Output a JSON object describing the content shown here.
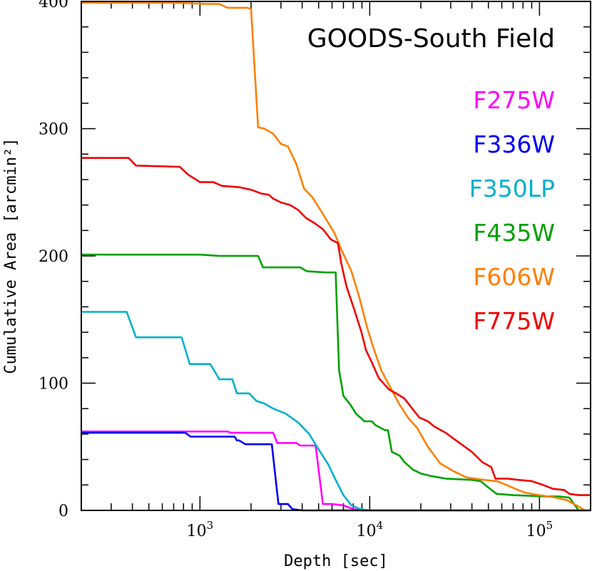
{
  "chart_data": {
    "type": "line",
    "title": "GOODS-South Field",
    "xlabel": "Depth [sec]",
    "ylabel": "Cumulative Area [arcmin²]",
    "x_scale": "log",
    "xlim": [
      200,
      200000
    ],
    "ylim": [
      0,
      400
    ],
    "x_major_ticks": [
      1000,
      10000,
      100000
    ],
    "x_tick_labels": [
      {
        "base": "10",
        "exp": "3"
      },
      {
        "base": "10",
        "exp": "4"
      },
      {
        "base": "10",
        "exp": "5"
      }
    ],
    "y_ticks": [
      0,
      100,
      200,
      300,
      400
    ],
    "y_tick_labels": [
      "0",
      "100",
      "200",
      "300",
      "400"
    ],
    "grid": false,
    "legend_position": "right",
    "series": [
      {
        "name": "F275W",
        "color": "#ff00ff",
        "points": [
          [
            200,
            62
          ],
          [
            1450,
            62
          ],
          [
            1520,
            61
          ],
          [
            2000,
            61
          ],
          [
            2700,
            61
          ],
          [
            2850,
            53
          ],
          [
            3700,
            53
          ],
          [
            3900,
            51
          ],
          [
            4500,
            51
          ],
          [
            4800,
            51
          ],
          [
            5300,
            5
          ],
          [
            6000,
            5
          ],
          [
            7000,
            4
          ],
          [
            8000,
            1
          ],
          [
            9000,
            0
          ],
          [
            200000,
            0
          ]
        ]
      },
      {
        "name": "F336W",
        "color": "#0000ee",
        "points": [
          [
            200,
            61
          ],
          [
            820,
            61
          ],
          [
            880,
            58
          ],
          [
            1600,
            58
          ],
          [
            1650,
            55
          ],
          [
            1700,
            55
          ],
          [
            1850,
            52
          ],
          [
            2400,
            52
          ],
          [
            2650,
            52
          ],
          [
            2900,
            5
          ],
          [
            3300,
            5
          ],
          [
            3500,
            1
          ],
          [
            4000,
            0
          ],
          [
            200000,
            0
          ]
        ]
      },
      {
        "name": "F350LP",
        "color": "#00b0cc",
        "points": [
          [
            200,
            156
          ],
          [
            370,
            156
          ],
          [
            420,
            136
          ],
          [
            780,
            136
          ],
          [
            870,
            115
          ],
          [
            1150,
            115
          ],
          [
            1300,
            103
          ],
          [
            1550,
            103
          ],
          [
            1650,
            92
          ],
          [
            1950,
            92
          ],
          [
            2150,
            86
          ],
          [
            2400,
            84
          ],
          [
            2700,
            80
          ],
          [
            3200,
            76
          ],
          [
            3800,
            69
          ],
          [
            4400,
            60
          ],
          [
            5000,
            48
          ],
          [
            5700,
            36
          ],
          [
            6300,
            24
          ],
          [
            7000,
            12
          ],
          [
            7800,
            4
          ],
          [
            8800,
            1
          ],
          [
            10000,
            0
          ],
          [
            200000,
            0
          ]
        ]
      },
      {
        "name": "F435W",
        "color": "#00a000",
        "points": [
          [
            200,
            201
          ],
          [
            1000,
            201
          ],
          [
            1300,
            200
          ],
          [
            2200,
            200
          ],
          [
            2350,
            191
          ],
          [
            3900,
            191
          ],
          [
            4250,
            188
          ],
          [
            5500,
            187
          ],
          [
            6300,
            187
          ],
          [
            6600,
            110
          ],
          [
            7000,
            90
          ],
          [
            7700,
            83
          ],
          [
            8300,
            76
          ],
          [
            9300,
            70
          ],
          [
            10300,
            70
          ],
          [
            10800,
            67
          ],
          [
            12300,
            63
          ],
          [
            12800,
            63
          ],
          [
            13500,
            46
          ],
          [
            15000,
            43
          ],
          [
            16000,
            38
          ],
          [
            18000,
            32
          ],
          [
            20000,
            29
          ],
          [
            23000,
            27
          ],
          [
            28000,
            25
          ],
          [
            40000,
            24
          ],
          [
            45000,
            23
          ],
          [
            50000,
            18
          ],
          [
            56000,
            13
          ],
          [
            70000,
            12
          ],
          [
            110000,
            11
          ],
          [
            130000,
            11
          ],
          [
            150000,
            10
          ],
          [
            160000,
            5
          ],
          [
            170000,
            0
          ],
          [
            200000,
            0
          ]
        ]
      },
      {
        "name": "F606W",
        "color": "#ff7f00",
        "points": [
          [
            200,
            399
          ],
          [
            700,
            399
          ],
          [
            1100,
            398
          ],
          [
            1300,
            398
          ],
          [
            1450,
            395
          ],
          [
            1900,
            395
          ],
          [
            2000,
            394
          ],
          [
            2200,
            301
          ],
          [
            2400,
            300
          ],
          [
            2700,
            296
          ],
          [
            3000,
            288
          ],
          [
            3300,
            286
          ],
          [
            3700,
            272
          ],
          [
            4100,
            253
          ],
          [
            4600,
            246
          ],
          [
            5300,
            233
          ],
          [
            6200,
            218
          ],
          [
            6800,
            205
          ],
          [
            7800,
            188
          ],
          [
            8700,
            167
          ],
          [
            9600,
            145
          ],
          [
            10500,
            128
          ],
          [
            11700,
            110
          ],
          [
            13300,
            96
          ],
          [
            15000,
            83
          ],
          [
            17000,
            72
          ],
          [
            19000,
            65
          ],
          [
            22000,
            50
          ],
          [
            26000,
            37
          ],
          [
            31000,
            31
          ],
          [
            37000,
            26
          ],
          [
            47000,
            24
          ],
          [
            56000,
            23
          ],
          [
            64000,
            20
          ],
          [
            72000,
            17
          ],
          [
            82000,
            14
          ],
          [
            100000,
            12
          ],
          [
            125000,
            10
          ],
          [
            145000,
            8
          ],
          [
            170000,
            3
          ],
          [
            185000,
            0
          ],
          [
            200000,
            0
          ]
        ]
      },
      {
        "name": "F775W",
        "color": "#ee0000",
        "points": [
          [
            200,
            277
          ],
          [
            380,
            277
          ],
          [
            420,
            271
          ],
          [
            760,
            270
          ],
          [
            850,
            264
          ],
          [
            1000,
            258
          ],
          [
            1200,
            258
          ],
          [
            1350,
            255
          ],
          [
            1700,
            254
          ],
          [
            2000,
            252
          ],
          [
            2300,
            249
          ],
          [
            2550,
            248
          ],
          [
            2700,
            245
          ],
          [
            3000,
            242
          ],
          [
            3400,
            240
          ],
          [
            3800,
            236
          ],
          [
            4200,
            230
          ],
          [
            4700,
            226
          ],
          [
            5300,
            221
          ],
          [
            5900,
            213
          ],
          [
            6500,
            210
          ],
          [
            6800,
            194
          ],
          [
            7300,
            176
          ],
          [
            8100,
            158
          ],
          [
            8900,
            141
          ],
          [
            9500,
            126
          ],
          [
            10400,
            115
          ],
          [
            11300,
            104
          ],
          [
            13000,
            95
          ],
          [
            14300,
            92
          ],
          [
            16000,
            88
          ],
          [
            17800,
            80
          ],
          [
            19600,
            73
          ],
          [
            22000,
            70
          ],
          [
            24000,
            66
          ],
          [
            28000,
            61
          ],
          [
            33000,
            54
          ],
          [
            40000,
            46
          ],
          [
            46000,
            38
          ],
          [
            52000,
            34
          ],
          [
            55000,
            25
          ],
          [
            65000,
            25
          ],
          [
            75000,
            24
          ],
          [
            90000,
            23
          ],
          [
            105000,
            20
          ],
          [
            120000,
            17
          ],
          [
            140000,
            16
          ],
          [
            150000,
            13
          ],
          [
            170000,
            12
          ],
          [
            200000,
            12
          ]
        ]
      }
    ]
  }
}
